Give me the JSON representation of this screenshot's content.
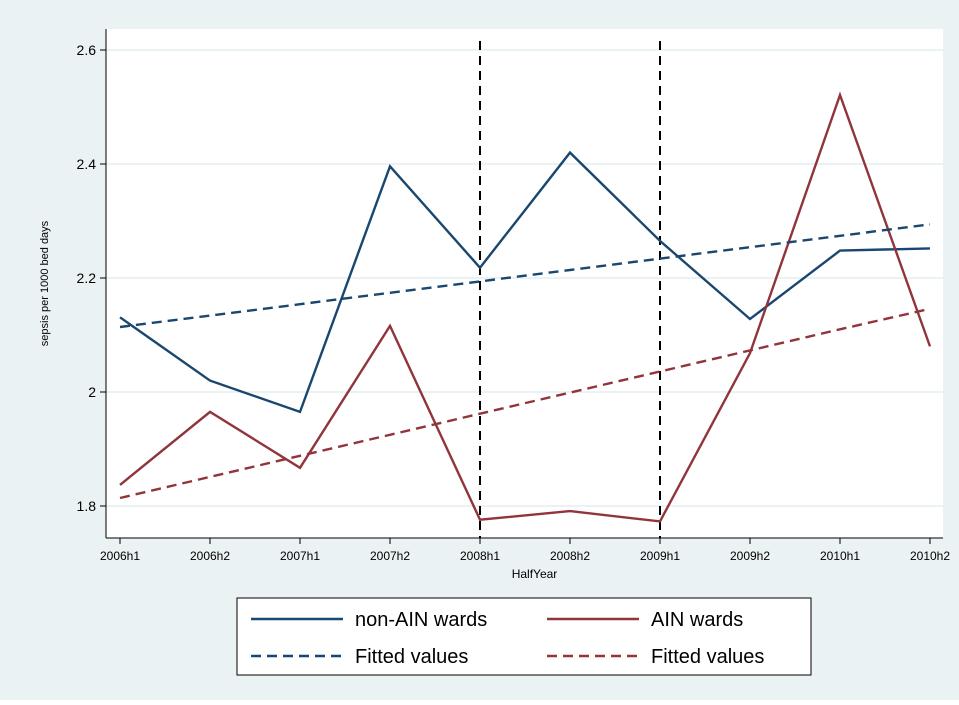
{
  "chart_data": {
    "type": "line",
    "title": "",
    "xlabel": "HalfYear",
    "ylabel": "sepsis per 1000 bed days",
    "categories": [
      "2006h1",
      "2006h2",
      "2007h1",
      "2007h2",
      "2008h1",
      "2008h2",
      "2009h1",
      "2009h2",
      "2010h1",
      "2010h2"
    ],
    "y_ticks": [
      1.8,
      2,
      2.2,
      2.4,
      2.6
    ],
    "y_tick_labels": [
      "1.8",
      "2",
      "2.2",
      "2.4",
      "2.6"
    ],
    "ylim": [
      1.75,
      2.62
    ],
    "grid": true,
    "vertical_reference_lines": [
      "2008h1",
      "2009h1"
    ],
    "series": [
      {
        "name": "non-AIN wards",
        "style": "solid",
        "color": "#1a476f",
        "values": [
          2.131,
          2.02,
          1.965,
          2.396,
          2.218,
          2.42,
          2.265,
          2.128,
          2.248,
          2.252
        ]
      },
      {
        "name": "AIN wards",
        "style": "solid",
        "color": "#90353b",
        "values": [
          1.837,
          1.965,
          1.867,
          2.116,
          1.776,
          1.791,
          1.773,
          2.068,
          2.521,
          2.08
        ]
      },
      {
        "name": "Fitted values",
        "style": "dashed",
        "color": "#1a476f",
        "values": [
          2.114,
          2.134,
          2.154,
          2.174,
          2.194,
          2.214,
          2.234,
          2.254,
          2.274,
          2.294
        ]
      },
      {
        "name": "Fitted values",
        "style": "dashed",
        "color": "#90353b",
        "values": [
          1.814,
          1.851,
          1.888,
          1.925,
          1.962,
          1.999,
          2.036,
          2.073,
          2.11,
          2.146
        ]
      }
    ],
    "legend": {
      "placement": "bottom",
      "entries": [
        {
          "label": "non-AIN wards",
          "style": "solid",
          "color": "#1a476f"
        },
        {
          "label": "AIN wards",
          "style": "solid",
          "color": "#90353b"
        },
        {
          "label": "Fitted values",
          "style": "dashed",
          "color": "#1a476f"
        },
        {
          "label": "Fitted values",
          "style": "dashed",
          "color": "#90353b"
        }
      ]
    },
    "colors": {
      "background": "#eaf2f3",
      "plot_background": "#ffffff",
      "grid": "#eaf2f3",
      "reference_line": "#000000"
    }
  }
}
